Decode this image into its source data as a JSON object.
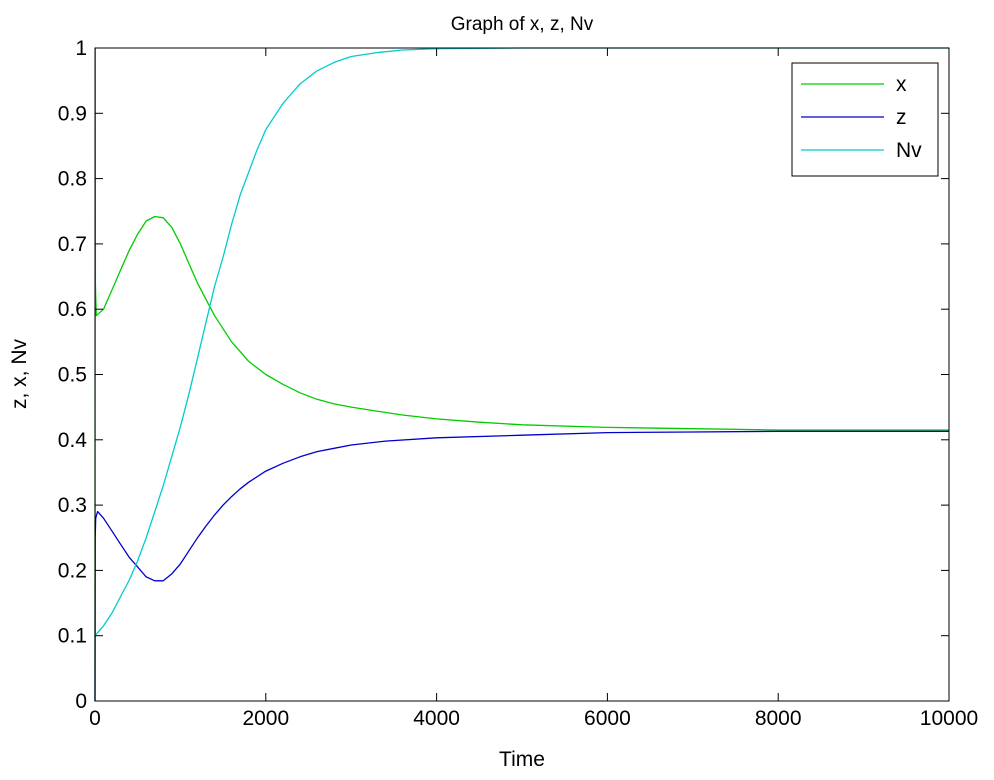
{
  "chart_data": {
    "type": "line",
    "title": "Graph of x, z, Nv",
    "xlabel": "Time",
    "ylabel": "z, x, Nv",
    "xlim": [
      0,
      10000
    ],
    "ylim": [
      0,
      1
    ],
    "xticks": [
      0,
      2000,
      4000,
      6000,
      8000,
      10000
    ],
    "yticks": [
      0,
      0.1,
      0.2,
      0.3,
      0.4,
      0.5,
      0.6,
      0.7,
      0.8,
      0.9,
      1
    ],
    "grid": false,
    "legend_position": "top-right",
    "series": [
      {
        "name": "x",
        "color": "#00cc00",
        "points": [
          [
            0,
            0
          ],
          [
            2,
            1.0
          ],
          [
            5,
            0.64
          ],
          [
            8,
            0.62
          ],
          [
            15,
            0.59
          ],
          [
            100,
            0.6
          ],
          [
            200,
            0.63
          ],
          [
            300,
            0.66
          ],
          [
            400,
            0.69
          ],
          [
            500,
            0.715
          ],
          [
            600,
            0.735
          ],
          [
            700,
            0.742
          ],
          [
            800,
            0.74
          ],
          [
            900,
            0.725
          ],
          [
            1000,
            0.7
          ],
          [
            1100,
            0.67
          ],
          [
            1200,
            0.64
          ],
          [
            1300,
            0.615
          ],
          [
            1400,
            0.59
          ],
          [
            1500,
            0.57
          ],
          [
            1600,
            0.55
          ],
          [
            1700,
            0.535
          ],
          [
            1800,
            0.52
          ],
          [
            2000,
            0.5
          ],
          [
            2200,
            0.485
          ],
          [
            2400,
            0.472
          ],
          [
            2600,
            0.462
          ],
          [
            2800,
            0.455
          ],
          [
            3000,
            0.45
          ],
          [
            3300,
            0.444
          ],
          [
            3600,
            0.438
          ],
          [
            4000,
            0.432
          ],
          [
            4500,
            0.427
          ],
          [
            5000,
            0.423
          ],
          [
            6000,
            0.419
          ],
          [
            7000,
            0.417
          ],
          [
            8000,
            0.415
          ],
          [
            9000,
            0.415
          ],
          [
            10000,
            0.415
          ]
        ]
      },
      {
        "name": "z",
        "color": "#0000cc",
        "points": [
          [
            0,
            0
          ],
          [
            2,
            0.25
          ],
          [
            8,
            0.28
          ],
          [
            30,
            0.29
          ],
          [
            100,
            0.28
          ],
          [
            200,
            0.26
          ],
          [
            300,
            0.24
          ],
          [
            400,
            0.22
          ],
          [
            500,
            0.205
          ],
          [
            600,
            0.19
          ],
          [
            700,
            0.184
          ],
          [
            800,
            0.184
          ],
          [
            900,
            0.195
          ],
          [
            1000,
            0.21
          ],
          [
            1100,
            0.23
          ],
          [
            1200,
            0.25
          ],
          [
            1300,
            0.268
          ],
          [
            1400,
            0.285
          ],
          [
            1500,
            0.3
          ],
          [
            1600,
            0.313
          ],
          [
            1700,
            0.325
          ],
          [
            1800,
            0.335
          ],
          [
            2000,
            0.352
          ],
          [
            2200,
            0.364
          ],
          [
            2400,
            0.374
          ],
          [
            2600,
            0.382
          ],
          [
            2800,
            0.387
          ],
          [
            3000,
            0.392
          ],
          [
            3400,
            0.398
          ],
          [
            4000,
            0.403
          ],
          [
            5000,
            0.407
          ],
          [
            6000,
            0.411
          ],
          [
            7000,
            0.412
          ],
          [
            8000,
            0.413
          ],
          [
            9000,
            0.413
          ],
          [
            10000,
            0.413
          ]
        ]
      },
      {
        "name": "Nv",
        "color": "#00cccc",
        "points": [
          [
            0,
            0.1
          ],
          [
            100,
            0.115
          ],
          [
            200,
            0.135
          ],
          [
            300,
            0.16
          ],
          [
            400,
            0.185
          ],
          [
            500,
            0.215
          ],
          [
            600,
            0.25
          ],
          [
            700,
            0.29
          ],
          [
            800,
            0.33
          ],
          [
            900,
            0.375
          ],
          [
            1000,
            0.42
          ],
          [
            1100,
            0.47
          ],
          [
            1200,
            0.525
          ],
          [
            1300,
            0.58
          ],
          [
            1400,
            0.635
          ],
          [
            1500,
            0.68
          ],
          [
            1600,
            0.73
          ],
          [
            1700,
            0.775
          ],
          [
            1800,
            0.81
          ],
          [
            1900,
            0.845
          ],
          [
            2000,
            0.875
          ],
          [
            2200,
            0.915
          ],
          [
            2400,
            0.945
          ],
          [
            2600,
            0.965
          ],
          [
            2800,
            0.978
          ],
          [
            3000,
            0.987
          ],
          [
            3300,
            0.993
          ],
          [
            3600,
            0.997
          ],
          [
            4000,
            0.999
          ],
          [
            5000,
            1.0
          ],
          [
            10000,
            1.0
          ]
        ]
      }
    ]
  }
}
